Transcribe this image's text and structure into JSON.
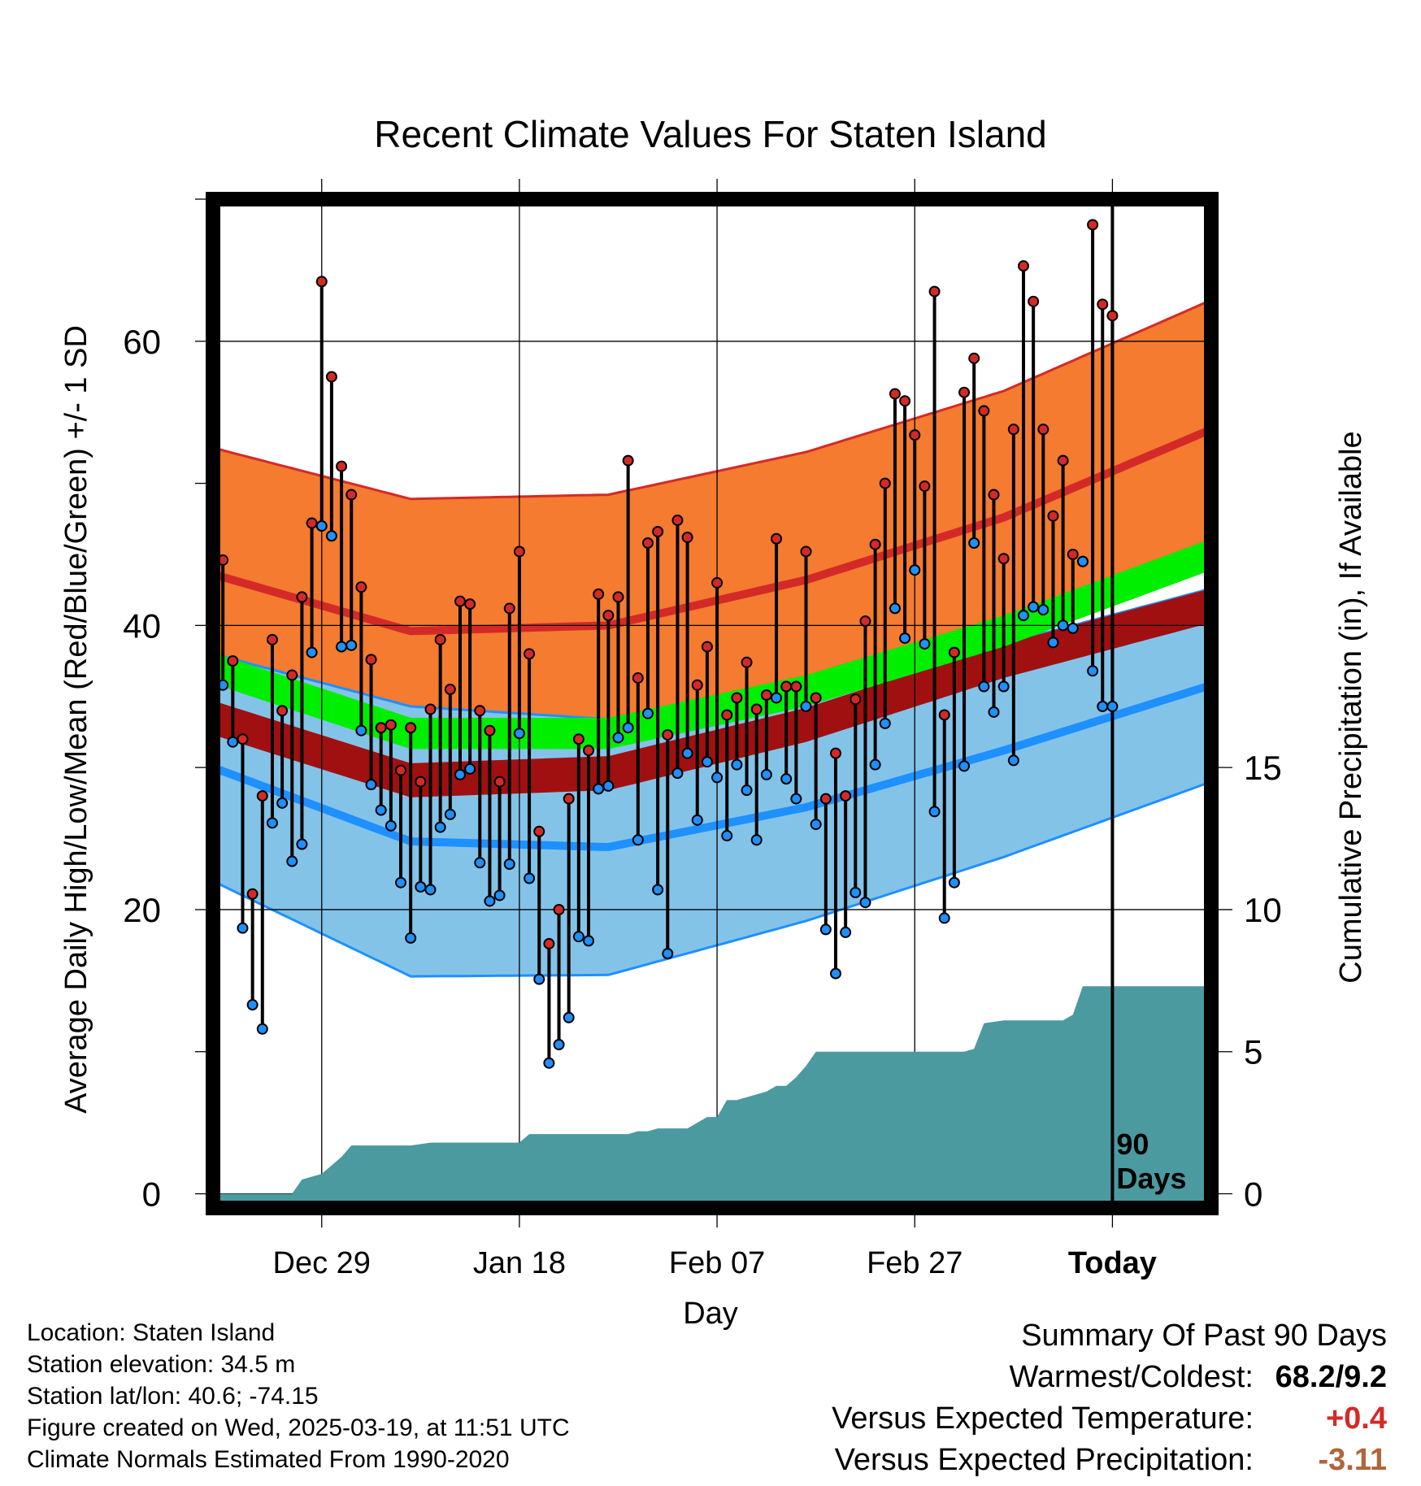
{
  "chart_data": {
    "type": "line",
    "title": "Recent Climate Values For Staten Island",
    "xlabel": "Day",
    "ylabel": "Average Daily High/Low/Mean (Red/Blue/Green) +/- 1 SD",
    "y2label": "Cumulative Precipitation (in), If Available",
    "x_tick_labels": [
      "Dec 29",
      "Jan 18",
      "Feb 07",
      "Feb 27",
      "Today"
    ],
    "x_tick_days": [
      11,
      31,
      51,
      71,
      91
    ],
    "today_marker": {
      "day": 91,
      "label_line1": "90",
      "label_line2": "Days"
    },
    "ylim": [
      -1,
      70
    ],
    "y_ticks": [
      0,
      20,
      40,
      60
    ],
    "y2_ticks": [
      0,
      5,
      10,
      15
    ],
    "y2_per_y": 0.5,
    "xlim": [
      0,
      101
    ],
    "normals": {
      "days": [
        0,
        20,
        40,
        60,
        80,
        101
      ],
      "high_mean": [
        43.6,
        39.6,
        40.0,
        43.2,
        47.6,
        53.8
      ],
      "high_sd": [
        8.9,
        9.3,
        9.2,
        9.0,
        8.9,
        9.1
      ],
      "low_mean": [
        30.0,
        24.8,
        24.4,
        27.2,
        31.2,
        35.8
      ],
      "low_sd": [
        8.0,
        9.5,
        9.0,
        8.0,
        7.5,
        6.8
      ],
      "mean_mean": [
        36.8,
        32.2,
        32.2,
        35.2,
        39.4,
        44.8
      ]
    },
    "series": [
      {
        "name": "Daily High",
        "values": [
          44.6,
          37.5,
          32.0,
          21.1,
          28.0,
          39.0,
          34.0,
          36.5,
          42.0,
          47.2,
          64.2,
          57.5,
          51.2,
          49.2,
          42.7,
          37.6,
          32.8,
          33.0,
          29.8,
          32.8,
          29.0,
          34.1,
          39.0,
          35.5,
          41.7,
          41.5,
          34.0,
          32.6,
          29.0,
          41.2,
          45.2,
          38.0,
          25.5,
          17.6,
          20.0,
          27.8,
          32.0,
          31.2,
          42.2,
          40.7,
          42.0,
          51.6,
          36.3,
          45.8,
          46.6,
          32.3,
          47.4,
          46.2,
          35.8,
          38.5,
          43.0,
          33.7,
          34.9,
          37.4,
          34.1,
          35.1,
          46.1,
          35.7,
          35.7,
          45.2,
          34.9,
          27.8,
          31.0,
          28.0,
          34.8,
          40.3,
          45.7,
          50.0,
          56.3,
          55.8,
          53.4,
          49.8,
          63.5,
          33.7,
          38.1,
          56.4,
          58.8,
          55.1,
          49.2,
          44.7,
          53.8,
          65.3,
          62.8,
          53.8,
          47.7,
          51.6,
          45.0,
          44.5,
          68.2,
          62.6,
          61.8
        ]
      },
      {
        "name": "Daily Low",
        "values": [
          35.8,
          31.8,
          18.7,
          13.3,
          11.6,
          26.1,
          27.5,
          23.4,
          24.6,
          38.1,
          47.0,
          46.3,
          38.5,
          38.6,
          32.6,
          28.8,
          27.0,
          25.9,
          21.9,
          18.0,
          21.6,
          21.4,
          25.8,
          26.7,
          29.5,
          29.9,
          23.3,
          20.6,
          21.0,
          23.2,
          32.4,
          22.2,
          15.1,
          9.2,
          10.5,
          12.4,
          18.1,
          17.8,
          28.5,
          28.7,
          32.1,
          32.8,
          24.9,
          33.8,
          21.4,
          16.9,
          29.6,
          31.0,
          26.3,
          30.4,
          29.3,
          25.2,
          30.2,
          28.4,
          24.9,
          29.5,
          34.9,
          29.2,
          27.8,
          34.3,
          26.0,
          18.6,
          15.5,
          18.4,
          21.2,
          20.5,
          30.2,
          33.1,
          41.2,
          39.1,
          43.9,
          38.7,
          26.9,
          19.4,
          21.9,
          30.1,
          45.8,
          35.7,
          33.9,
          35.7,
          30.5,
          40.7,
          41.3,
          41.1,
          38.8,
          40.0,
          39.8,
          44.5,
          36.8,
          34.3,
          34.3
        ]
      },
      {
        "name": "Cumulative Precipitation",
        "days": [
          0,
          8,
          9,
          10,
          11,
          12,
          13,
          14,
          15,
          16,
          17,
          18,
          20,
          22,
          24,
          26,
          28,
          30,
          31,
          32,
          34,
          36,
          38,
          40,
          42,
          43,
          44,
          45,
          46,
          48,
          49,
          50,
          51,
          52,
          53,
          54,
          56,
          57,
          58,
          59,
          60,
          61,
          62,
          63,
          65,
          68,
          70,
          72,
          74,
          76,
          77,
          78,
          80,
          82,
          84,
          86,
          87,
          88,
          90,
          91,
          93,
          95,
          101
        ],
        "values": [
          0.0,
          0.0,
          0.5,
          0.6,
          0.7,
          1.0,
          1.3,
          1.7,
          1.7,
          1.7,
          1.7,
          1.7,
          1.7,
          1.8,
          1.8,
          1.8,
          1.8,
          1.8,
          1.8,
          2.1,
          2.1,
          2.1,
          2.1,
          2.1,
          2.1,
          2.2,
          2.2,
          2.3,
          2.3,
          2.3,
          2.5,
          2.7,
          2.7,
          3.3,
          3.3,
          3.4,
          3.6,
          3.8,
          3.8,
          4.1,
          4.5,
          5.0,
          5.0,
          5.0,
          5.0,
          5.0,
          5.0,
          5.0,
          5.0,
          5.0,
          5.1,
          6.0,
          6.1,
          6.1,
          6.1,
          6.1,
          6.3,
          7.3,
          7.3,
          7.3,
          7.3,
          7.3,
          7.3
        ]
      }
    ]
  },
  "footer": {
    "location": "Location: Staten Island",
    "elevation": "Station elevation: 34.5 m",
    "latlon": "Station lat/lon: 40.6; -74.15",
    "created": "Figure created on Wed, 2025-03-19, at 11:51 UTC",
    "normals": "Climate Normals Estimated From 1990-2020"
  },
  "summary": {
    "title": "Summary Of Past 90 Days",
    "warmest_label": "Warmest/Coldest:",
    "warmest_value": "68.2/9.2",
    "temp_label": "Versus Expected Temperature:",
    "temp_value": "+0.4",
    "precip_label": "Versus Expected Precipitation:",
    "precip_value": "-3.11"
  },
  "colors": {
    "high_band": "#f47b30",
    "high_line": "#d42a27",
    "low_band": "#84c3e8",
    "low_line": "#1e90ff",
    "mean_band": "#00ee00",
    "dark_red": "#a01010",
    "precip": "#4a9aa0",
    "high_dot": "#d42a27",
    "low_dot": "#1e90ff",
    "temp_value": "#d42a27",
    "precip_value": "#b0653a"
  }
}
